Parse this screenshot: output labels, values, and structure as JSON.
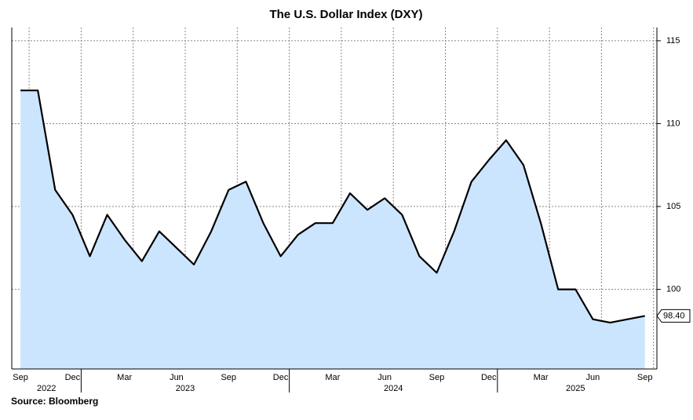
{
  "chart_data": {
    "type": "area",
    "title": "The U.S. Dollar Index (DXY)",
    "source": "Source: Bloomberg",
    "x": [
      "2022-09",
      "2022-10",
      "2022-11",
      "2022-12",
      "2023-01",
      "2023-02",
      "2023-03",
      "2023-04",
      "2023-05",
      "2023-06",
      "2023-07",
      "2023-08",
      "2023-09",
      "2023-10",
      "2023-11",
      "2023-12",
      "2024-01",
      "2024-02",
      "2024-03",
      "2024-04",
      "2024-05",
      "2024-06",
      "2024-07",
      "2024-08",
      "2024-09",
      "2024-10",
      "2024-11",
      "2024-12",
      "2025-01",
      "2025-02",
      "2025-03",
      "2025-04",
      "2025-05",
      "2025-06",
      "2025-07",
      "2025-08",
      "2025-09"
    ],
    "series": [
      {
        "name": "DXY",
        "color": "#000000",
        "fill": "#cce5ff",
        "values": [
          112,
          112,
          106,
          104.5,
          102,
          104.5,
          103,
          101.7,
          103.5,
          102.5,
          101.5,
          103.5,
          106,
          106.5,
          104,
          102,
          103.3,
          104,
          104,
          105.8,
          104.8,
          105.5,
          104.5,
          102,
          101,
          103.5,
          106.5,
          107.8,
          109,
          107.5,
          104,
          100,
          100,
          98.2,
          98,
          98.2,
          98.4
        ]
      }
    ],
    "last_value": {
      "value": 98.4,
      "label": "98.40"
    },
    "xticks": [
      {
        "value": "2022-09",
        "label": "Sep"
      },
      {
        "value": "2022-12",
        "label": "Dec"
      },
      {
        "value": "2023-03",
        "label": "Mar"
      },
      {
        "value": "2023-06",
        "label": "Jun"
      },
      {
        "value": "2023-09",
        "label": "Sep"
      },
      {
        "value": "2023-12",
        "label": "Dec"
      },
      {
        "value": "2024-03",
        "label": "Mar"
      },
      {
        "value": "2024-06",
        "label": "Jun"
      },
      {
        "value": "2024-09",
        "label": "Sep"
      },
      {
        "value": "2024-12",
        "label": "Dec"
      },
      {
        "value": "2025-03",
        "label": "Mar"
      },
      {
        "value": "2025-06",
        "label": "Jun"
      },
      {
        "value": "2025-09",
        "label": "Sep"
      }
    ],
    "years": [
      "2022",
      "2023",
      "2024",
      "2025"
    ],
    "ylim": [
      95.2,
      115.8
    ],
    "yticks": [
      100,
      105,
      110,
      115
    ],
    "grid": true
  }
}
